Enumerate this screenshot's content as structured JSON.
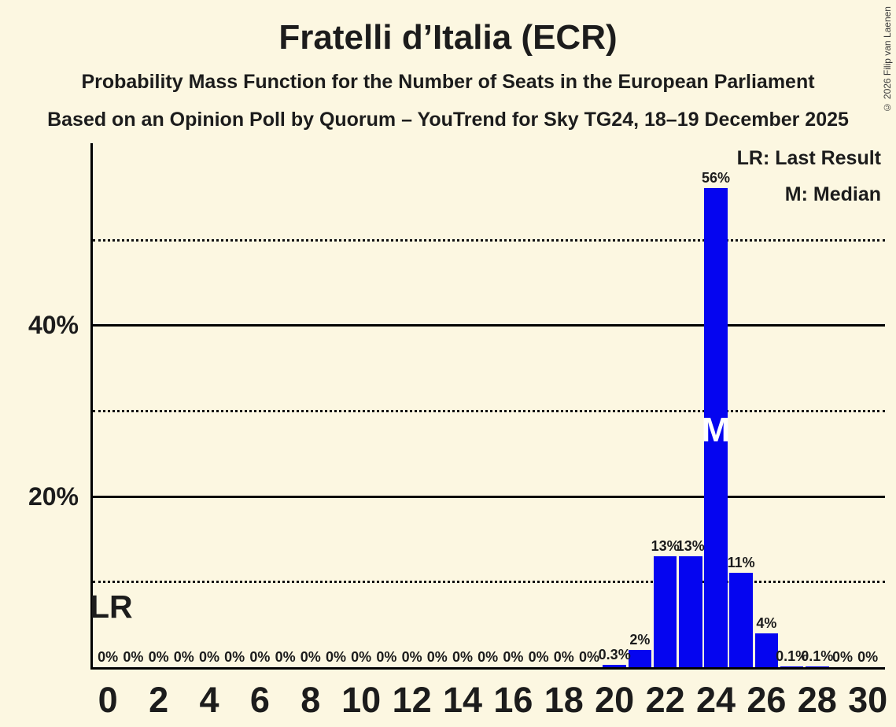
{
  "title": "Fratelli d’Italia (ECR)",
  "subtitle": "Probability Mass Function for the Number of Seats in the European Parliament",
  "source_line": "Based on an Opinion Poll by Quorum – YouTrend for Sky TG24, 18–19 December 2025",
  "copyright": "© 2026 Filip van Laenen",
  "legend": {
    "lr": "LR: Last Result",
    "m": "M: Median"
  },
  "annotations": {
    "last_result_label": "LR",
    "median_label": "M"
  },
  "colors": {
    "background": "#FCF7E1",
    "bar": "#0505F0",
    "text": "#1C1C1C",
    "median_text": "#FFFFFF",
    "grid": "#000000"
  },
  "chart_data": {
    "type": "bar",
    "title": "Fratelli d’Italia (ECR)",
    "xlabel": "",
    "ylabel": "",
    "x": [
      0,
      1,
      2,
      3,
      4,
      5,
      6,
      7,
      8,
      9,
      10,
      11,
      12,
      13,
      14,
      15,
      16,
      17,
      18,
      19,
      20,
      21,
      22,
      23,
      24,
      25,
      26,
      27,
      28,
      29,
      30
    ],
    "values": [
      0,
      0,
      0,
      0,
      0,
      0,
      0,
      0,
      0,
      0,
      0,
      0,
      0,
      0,
      0,
      0,
      0,
      0,
      0,
      0,
      0.3,
      2,
      13,
      13,
      56,
      11,
      4,
      0.1,
      0.1,
      0,
      0
    ],
    "bar_labels": [
      "0%",
      "0%",
      "0%",
      "0%",
      "0%",
      "0%",
      "0%",
      "0%",
      "0%",
      "0%",
      "0%",
      "0%",
      "0%",
      "0%",
      "0%",
      "0%",
      "0%",
      "0%",
      "0%",
      "0%",
      "0.3%",
      "2%",
      "13%",
      "13%",
      "56%",
      "11%",
      "4%",
      "0.1%",
      "0.1%",
      "0%",
      "0%"
    ],
    "x_tick_seats": [
      0,
      2,
      4,
      6,
      8,
      10,
      12,
      14,
      16,
      18,
      20,
      22,
      24,
      26,
      28,
      30
    ],
    "y_ticks": [
      {
        "pct": 20,
        "label": "20%"
      },
      {
        "pct": 40,
        "label": "40%"
      }
    ],
    "gridlines": [
      {
        "pct": 10,
        "style": "dotted"
      },
      {
        "pct": 20,
        "style": "solid"
      },
      {
        "pct": 30,
        "style": "dotted"
      },
      {
        "pct": 40,
        "style": "solid"
      },
      {
        "pct": 50,
        "style": "dotted"
      }
    ],
    "ylim": [
      0,
      61
    ],
    "median_seat": 24,
    "legend_position": "top-right",
    "grid": "horizontal: solid every 20%, dotted every 10%"
  }
}
